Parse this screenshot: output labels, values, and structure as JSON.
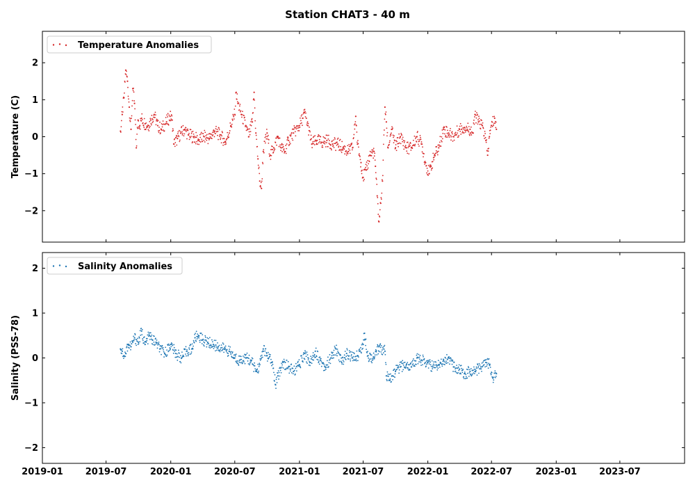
{
  "chart_data": [
    {
      "type": "scatter",
      "title": "Station CHAT3 - 40 m",
      "ylabel": "Temperature (C)",
      "xlabel": "",
      "ylim": [
        -2.85,
        2.85
      ],
      "xlim": [
        "2019-01-01",
        "2024-01-01"
      ],
      "yticks": [
        -2,
        -1,
        0,
        1,
        2
      ],
      "ytick_labels": [
        "−2",
        "−1",
        "0",
        "1",
        "2"
      ],
      "legend_position": "top-left",
      "grid": false,
      "color": "#d62728",
      "series": [
        {
          "name": "Temperature Anomalies",
          "points": [
            [
              "2019-08-11",
              0.15
            ],
            [
              "2019-08-16",
              0.6
            ],
            [
              "2019-08-21",
              1.05
            ],
            [
              "2019-08-26",
              1.8
            ],
            [
              "2019-08-31",
              1.5
            ],
            [
              "2019-09-05",
              0.8
            ],
            [
              "2019-09-10",
              0.2
            ],
            [
              "2019-09-15",
              1.3
            ],
            [
              "2019-09-20",
              0.9
            ],
            [
              "2019-09-25",
              -0.3
            ],
            [
              "2019-09-30",
              0.45
            ],
            [
              "2019-10-05",
              0.3
            ],
            [
              "2019-10-10",
              0.5
            ],
            [
              "2019-10-20",
              0.35
            ],
            [
              "2019-10-30",
              0.3
            ],
            [
              "2019-11-05",
              0.45
            ],
            [
              "2019-11-15",
              0.6
            ],
            [
              "2019-11-25",
              0.3
            ],
            [
              "2019-12-05",
              0.2
            ],
            [
              "2019-12-20",
              0.4
            ],
            [
              "2019-12-30",
              0.55
            ],
            [
              "2020-01-05",
              0.45
            ],
            [
              "2020-01-10",
              -0.2
            ],
            [
              "2020-01-20",
              -0.05
            ],
            [
              "2020-01-30",
              0.1
            ],
            [
              "2020-02-10",
              0.2
            ],
            [
              "2020-02-20",
              0.05
            ],
            [
              "2020-03-05",
              0.0
            ],
            [
              "2020-03-20",
              -0.1
            ],
            [
              "2020-04-05",
              0.0
            ],
            [
              "2020-04-20",
              -0.05
            ],
            [
              "2020-05-05",
              0.15
            ],
            [
              "2020-05-20",
              0.05
            ],
            [
              "2020-06-05",
              -0.15
            ],
            [
              "2020-06-20",
              0.3
            ],
            [
              "2020-07-01",
              0.6
            ],
            [
              "2020-07-05",
              1.2
            ],
            [
              "2020-07-10",
              0.9
            ],
            [
              "2020-07-20",
              0.6
            ],
            [
              "2020-08-01",
              0.3
            ],
            [
              "2020-08-10",
              0.0
            ],
            [
              "2020-08-20",
              0.4
            ],
            [
              "2020-08-25",
              1.2
            ],
            [
              "2020-08-30",
              0.1
            ],
            [
              "2020-09-05",
              -0.6
            ],
            [
              "2020-09-10",
              -1.2
            ],
            [
              "2020-09-15",
              -1.4
            ],
            [
              "2020-09-20",
              -0.4
            ],
            [
              "2020-10-01",
              0.1
            ],
            [
              "2020-10-10",
              -0.5
            ],
            [
              "2020-10-20",
              -0.3
            ],
            [
              "2020-11-01",
              0.0
            ],
            [
              "2020-11-10",
              -0.3
            ],
            [
              "2020-11-20",
              -0.4
            ],
            [
              "2020-12-01",
              -0.1
            ],
            [
              "2020-12-15",
              0.1
            ],
            [
              "2021-01-01",
              0.3
            ],
            [
              "2021-01-10",
              0.5
            ],
            [
              "2021-01-15",
              0.65
            ],
            [
              "2021-01-25",
              0.3
            ],
            [
              "2021-02-05",
              -0.2
            ],
            [
              "2021-02-20",
              -0.1
            ],
            [
              "2021-03-05",
              -0.15
            ],
            [
              "2021-03-20",
              -0.1
            ],
            [
              "2021-04-05",
              -0.2
            ],
            [
              "2021-04-20",
              -0.2
            ],
            [
              "2021-05-05",
              -0.3
            ],
            [
              "2021-05-20",
              -0.4
            ],
            [
              "2021-06-01",
              -0.3
            ],
            [
              "2021-06-10",
              0.55
            ],
            [
              "2021-06-15",
              -0.2
            ],
            [
              "2021-06-25",
              -0.7
            ],
            [
              "2021-07-01",
              -1.1
            ],
            [
              "2021-07-10",
              -0.9
            ],
            [
              "2021-07-20",
              -0.5
            ],
            [
              "2021-08-01",
              -0.4
            ],
            [
              "2021-08-05",
              -0.8
            ],
            [
              "2021-08-10",
              -1.6
            ],
            [
              "2021-08-15",
              -2.3
            ],
            [
              "2021-08-20",
              -1.8
            ],
            [
              "2021-08-25",
              -1.2
            ],
            [
              "2021-09-01",
              0.8
            ],
            [
              "2021-09-05",
              0.4
            ],
            [
              "2021-09-10",
              -0.3
            ],
            [
              "2021-09-20",
              0.2
            ],
            [
              "2021-10-01",
              -0.3
            ],
            [
              "2021-10-15",
              0.0
            ],
            [
              "2021-11-01",
              -0.3
            ],
            [
              "2021-11-15",
              -0.3
            ],
            [
              "2021-12-01",
              0.0
            ],
            [
              "2021-12-15",
              -0.2
            ],
            [
              "2021-12-25",
              -0.7
            ],
            [
              "2022-01-05",
              -1.0
            ],
            [
              "2022-01-10",
              -0.8
            ],
            [
              "2022-01-20",
              -0.5
            ],
            [
              "2022-02-01",
              -0.3
            ],
            [
              "2022-02-15",
              0.2
            ],
            [
              "2022-03-01",
              0.1
            ],
            [
              "2022-03-15",
              0.0
            ],
            [
              "2022-04-01",
              0.2
            ],
            [
              "2022-04-15",
              0.25
            ],
            [
              "2022-05-01",
              0.2
            ],
            [
              "2022-05-10",
              0.1
            ],
            [
              "2022-05-15",
              0.6
            ],
            [
              "2022-05-25",
              0.4
            ],
            [
              "2022-06-05",
              0.3
            ],
            [
              "2022-06-15",
              -0.1
            ],
            [
              "2022-06-20",
              -0.5
            ],
            [
              "2022-06-25",
              0.0
            ],
            [
              "2022-07-01",
              0.3
            ],
            [
              "2022-07-10",
              0.5
            ],
            [
              "2022-07-15",
              0.2
            ]
          ]
        }
      ]
    },
    {
      "type": "scatter",
      "title": "",
      "ylabel": "Salinity (PSS-78)",
      "xlabel": "",
      "ylim": [
        -2.35,
        2.35
      ],
      "xlim": [
        "2019-01-01",
        "2024-01-01"
      ],
      "yticks": [
        -2,
        -1,
        0,
        1,
        2
      ],
      "ytick_labels": [
        "−2",
        "−1",
        "0",
        "1",
        "2"
      ],
      "xticks": [
        "2019-01-01",
        "2019-07-01",
        "2020-01-01",
        "2020-07-01",
        "2021-01-01",
        "2021-07-01",
        "2022-01-01",
        "2022-07-01",
        "2023-01-01",
        "2023-07-01"
      ],
      "xtick_labels": [
        "2019-01",
        "2019-07",
        "2020-01",
        "2020-07",
        "2021-01",
        "2021-07",
        "2022-01",
        "2022-07",
        "2023-01",
        "2023-07"
      ],
      "legend_position": "top-left",
      "grid": false,
      "color": "#1f77b4",
      "series": [
        {
          "name": "Salinity Anomalies",
          "points": [
            [
              "2019-08-11",
              0.2
            ],
            [
              "2019-08-16",
              0.15
            ],
            [
              "2019-08-21",
              0.05
            ],
            [
              "2019-08-26",
              0.1
            ],
            [
              "2019-09-01",
              0.3
            ],
            [
              "2019-09-10",
              0.25
            ],
            [
              "2019-09-20",
              0.45
            ],
            [
              "2019-10-01",
              0.35
            ],
            [
              "2019-10-10",
              0.6
            ],
            [
              "2019-10-20",
              0.3
            ],
            [
              "2019-11-01",
              0.5
            ],
            [
              "2019-11-10",
              0.4
            ],
            [
              "2019-11-20",
              0.35
            ],
            [
              "2019-12-01",
              0.2
            ],
            [
              "2019-12-15",
              0.1
            ],
            [
              "2020-01-01",
              0.3
            ],
            [
              "2020-01-15",
              0.1
            ],
            [
              "2020-02-01",
              0.0
            ],
            [
              "2020-02-15",
              0.15
            ],
            [
              "2020-03-01",
              0.2
            ],
            [
              "2020-03-10",
              0.45
            ],
            [
              "2020-03-20",
              0.5
            ],
            [
              "2020-04-01",
              0.4
            ],
            [
              "2020-04-15",
              0.35
            ],
            [
              "2020-05-01",
              0.3
            ],
            [
              "2020-05-15",
              0.25
            ],
            [
              "2020-06-01",
              0.2
            ],
            [
              "2020-06-15",
              0.15
            ],
            [
              "2020-07-01",
              0.0
            ],
            [
              "2020-07-15",
              -0.05
            ],
            [
              "2020-08-01",
              0.0
            ],
            [
              "2020-08-15",
              -0.05
            ],
            [
              "2020-09-01",
              -0.3
            ],
            [
              "2020-09-10",
              -0.15
            ],
            [
              "2020-09-20",
              0.2
            ],
            [
              "2020-10-01",
              0.05
            ],
            [
              "2020-10-15",
              -0.1
            ],
            [
              "2020-10-25",
              -0.6
            ],
            [
              "2020-11-01",
              -0.4
            ],
            [
              "2020-11-15",
              -0.1
            ],
            [
              "2020-12-01",
              -0.2
            ],
            [
              "2020-12-15",
              -0.3
            ],
            [
              "2021-01-01",
              -0.15
            ],
            [
              "2021-01-15",
              0.1
            ],
            [
              "2021-02-01",
              -0.1
            ],
            [
              "2021-02-15",
              0.15
            ],
            [
              "2021-03-01",
              -0.05
            ],
            [
              "2021-03-15",
              -0.2
            ],
            [
              "2021-04-01",
              0.0
            ],
            [
              "2021-04-15",
              0.2
            ],
            [
              "2021-05-01",
              -0.1
            ],
            [
              "2021-05-15",
              0.1
            ],
            [
              "2021-06-01",
              0.0
            ],
            [
              "2021-06-15",
              0.05
            ],
            [
              "2021-07-01",
              0.3
            ],
            [
              "2021-07-05",
              0.55
            ],
            [
              "2021-07-15",
              0.05
            ],
            [
              "2021-08-01",
              0.0
            ],
            [
              "2021-08-15",
              0.25
            ],
            [
              "2021-09-01",
              0.15
            ],
            [
              "2021-09-05",
              -0.4
            ],
            [
              "2021-09-15",
              -0.5
            ],
            [
              "2021-10-01",
              -0.3
            ],
            [
              "2021-10-15",
              -0.2
            ],
            [
              "2021-11-01",
              -0.15
            ],
            [
              "2021-11-15",
              -0.2
            ],
            [
              "2021-12-01",
              0.0
            ],
            [
              "2021-12-15",
              -0.05
            ],
            [
              "2022-01-01",
              -0.1
            ],
            [
              "2022-01-15",
              -0.2
            ],
            [
              "2022-02-01",
              -0.15
            ],
            [
              "2022-02-15",
              -0.05
            ],
            [
              "2022-03-01",
              0.0
            ],
            [
              "2022-03-15",
              -0.2
            ],
            [
              "2022-04-01",
              -0.25
            ],
            [
              "2022-04-15",
              -0.35
            ],
            [
              "2022-05-01",
              -0.3
            ],
            [
              "2022-05-15",
              -0.3
            ],
            [
              "2022-06-01",
              -0.2
            ],
            [
              "2022-06-15",
              -0.1
            ],
            [
              "2022-06-25",
              -0.15
            ],
            [
              "2022-07-05",
              -0.45
            ],
            [
              "2022-07-15",
              -0.35
            ]
          ]
        }
      ]
    }
  ]
}
